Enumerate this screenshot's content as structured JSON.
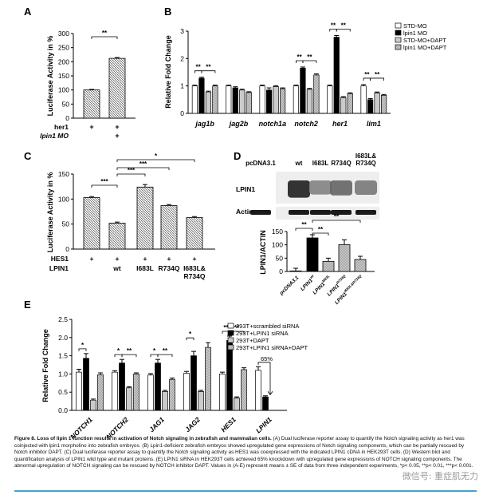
{
  "panels": {
    "A": {
      "letter": "A"
    },
    "B": {
      "letter": "B"
    },
    "C": {
      "letter": "C"
    },
    "D": {
      "letter": "D"
    },
    "E": {
      "letter": "E"
    }
  },
  "colors": {
    "black": "#000000",
    "white": "#ffffff",
    "grey": "#9a9a9a",
    "hatch": "#707070",
    "blot_dark": "#1a1a1a",
    "blot_light": "#c8c8c8",
    "caption_rule": "#3fa6c8"
  },
  "caption": {
    "title": "Figure 8. Loss of lipin 1 function results in activation of Notch signaling in zebrafish and mammalian cells.",
    "body": " (A) Dual luciferase reporter assay to quantify the Notch signaling activity as her1 was coinjected with lpin1 morpholino into zebrafish embryos. (B) Lpin1-deficient zebrafish embryos showed upregulated gene expressions of Notch signaling components, which can be partially rescued by Notch inhibitor DAPT. (C) Dual luciferase reporter assay to quantify the Notch signaling activity as HES1 was coexpressed with the indicated LPIN1 cDNA in HEK293T cells. (D) Western blot and quantification analysis of LPIN1 wild type and mutant proteins. (E) LPIN1 siRNA in HEK293T cells achieved 65% knockdown with upregulated gene expressions of NOTCH signaling components. The abnormal upregulation of NOTCH signaling can be rescued by NOTCH inhibitor DAPT. Values in (A-E) represent means ± SE of data from three independent experiments, *p< 0.05, **p< 0.01, ***p< 0.001."
  },
  "watermark": "微信号: 重症肌无力",
  "chart_data": [
    {
      "panel": "A",
      "type": "bar",
      "ylabel": "Luciferase Activity in %",
      "ylim": [
        0,
        300
      ],
      "yticks": [
        0,
        50,
        100,
        150,
        200,
        250,
        300
      ],
      "row_labels": [
        "her1",
        "lpin1 MO"
      ],
      "rows": [
        [
          "+",
          "+"
        ],
        [
          "",
          "+"
        ]
      ],
      "values": [
        100,
        212
      ],
      "errors": [
        2,
        3
      ],
      "significance": [
        {
          "from": 0,
          "to": 1,
          "label": "**"
        }
      ]
    },
    {
      "panel": "B",
      "type": "bar",
      "ylabel": "Relative Fold Change",
      "ylim": [
        0,
        3.0
      ],
      "yticks": [
        0,
        1,
        2,
        3
      ],
      "categories": [
        "jag1b",
        "jag2b",
        "notch1a",
        "notch2",
        "her1",
        "lim1"
      ],
      "series": [
        {
          "name": "STD-MO",
          "values": [
            1.0,
            1.0,
            1.0,
            1.0,
            1.0,
            1.0
          ],
          "errors": [
            0.03,
            0.03,
            0.03,
            0.03,
            0.03,
            0.05
          ]
        },
        {
          "name": "lpin1 MO",
          "values": [
            1.28,
            0.93,
            0.85,
            1.65,
            2.78,
            0.5
          ],
          "errors": [
            0.04,
            0.04,
            0.08,
            0.04,
            0.06,
            0.04
          ]
        },
        {
          "name": "STD-MO+DAPT",
          "values": [
            0.78,
            0.85,
            0.98,
            0.88,
            0.58,
            0.75
          ],
          "errors": [
            0.03,
            0.03,
            0.03,
            0.03,
            0.03,
            0.03
          ]
        },
        {
          "name": "lpin1 MO+DAPT",
          "values": [
            1.0,
            0.76,
            0.9,
            1.4,
            0.72,
            0.66
          ],
          "errors": [
            0.03,
            0.03,
            0.03,
            0.04,
            0.03,
            0.03
          ]
        }
      ],
      "significance": [
        {
          "cat": 0,
          "from": 0,
          "to": 1,
          "label": "**"
        },
        {
          "cat": 0,
          "from": 1,
          "to": 3,
          "label": "**"
        },
        {
          "cat": 3,
          "from": 0,
          "to": 1,
          "label": "**"
        },
        {
          "cat": 3,
          "from": 1,
          "to": 3,
          "label": "**"
        },
        {
          "cat": 4,
          "from": 0,
          "to": 1,
          "label": "**"
        },
        {
          "cat": 4,
          "from": 1,
          "to": 3,
          "label": "**"
        },
        {
          "cat": 5,
          "from": 0,
          "to": 1,
          "label": "**"
        },
        {
          "cat": 5,
          "from": 1,
          "to": 3,
          "label": "**"
        }
      ]
    },
    {
      "panel": "C",
      "type": "bar",
      "ylabel": "Luciferase Activity in %",
      "ylim": [
        0,
        150
      ],
      "yticks": [
        0,
        50,
        100,
        150
      ],
      "row_labels": [
        "HES1",
        "LPIN1"
      ],
      "rows": [
        [
          "+",
          "+",
          "+",
          "+",
          "+"
        ],
        [
          "",
          "wt",
          "I683L",
          "R734Q",
          "I683L&\nR734Q"
        ]
      ],
      "values": [
        103,
        52,
        124,
        87,
        63
      ],
      "errors": [
        2,
        2,
        5,
        2,
        2
      ],
      "significance": [
        {
          "from": 0,
          "to": 1,
          "label": "***"
        },
        {
          "from": 1,
          "to": 2,
          "label": "***"
        },
        {
          "from": 1,
          "to": 3,
          "label": "***"
        },
        {
          "from": 1,
          "to": 4,
          "label": "*"
        }
      ]
    },
    {
      "panel": "D",
      "type": "bar",
      "blot": {
        "lanes": [
          "pcDNA3.1",
          "wt",
          "I683L",
          "R734Q",
          "I683L&\nR734Q"
        ],
        "rows": [
          "LPIN1",
          "Actin"
        ]
      },
      "ylabel": "LPIN1/ACTIN",
      "ylim": [
        0,
        150
      ],
      "yticks": [
        0,
        50,
        100,
        150
      ],
      "categories": [
        "pcDNA3.1",
        "LPIN1wt",
        "LPIN1I683L",
        "LPIN1R734Q",
        "LPIN1I683L&R734Q"
      ],
      "category_base": [
        "pcDNA3.1",
        "LPIN1",
        "LPIN1",
        "LPIN1",
        "LPIN1"
      ],
      "category_sup": [
        "",
        "wt",
        "I683L",
        "R734Q",
        "I683L&R734Q"
      ],
      "values": [
        2,
        126,
        38,
        101,
        45
      ],
      "errors": [
        10,
        12,
        12,
        18,
        12
      ],
      "significance": [
        {
          "from": 0,
          "to": 1,
          "label": "**"
        },
        {
          "from": 1,
          "to": 2,
          "label": "**"
        },
        {
          "from": 1,
          "to": 4,
          "label": "**"
        }
      ]
    },
    {
      "panel": "E",
      "type": "bar",
      "ylabel": "Relative Fold Change",
      "ylim": [
        0,
        2.5
      ],
      "yticks": [
        0.0,
        0.5,
        1.0,
        1.5,
        2.0,
        2.5
      ],
      "categories": [
        "NOTCH1",
        "NOTCH2",
        "JAG1",
        "JAG2",
        "HES1",
        "LPIN1"
      ],
      "series": [
        {
          "name": "293T+scrambled siRNA",
          "values": [
            1.05,
            1.05,
            0.97,
            1.02,
            1.0,
            1.1
          ],
          "errors": [
            0.08,
            0.04,
            0.04,
            0.05,
            0.05,
            0.1
          ]
        },
        {
          "name": "293T+LPIN1 siRNA",
          "values": [
            1.43,
            1.3,
            1.3,
            1.5,
            1.92,
            0.37
          ],
          "errors": [
            0.13,
            0.1,
            0.1,
            0.12,
            0.12,
            0.03
          ]
        },
        {
          "name": "293T+DAPT",
          "values": [
            0.28,
            0.62,
            0.52,
            0.52,
            0.34,
            null
          ],
          "errors": [
            0.03,
            0.03,
            0.03,
            0.03,
            0.03,
            null
          ]
        },
        {
          "name": "293T+LPIN1 siRNA+DAPT",
          "values": [
            0.98,
            1.0,
            0.85,
            1.73,
            1.12,
            null
          ],
          "errors": [
            0.05,
            0.03,
            0.04,
            0.13,
            0.05,
            null
          ]
        }
      ],
      "significance": [
        {
          "cat": 0,
          "from": 0,
          "to": 1,
          "label": "*"
        },
        {
          "cat": 1,
          "from": 0,
          "to": 1,
          "label": "*"
        },
        {
          "cat": 1,
          "from": 1,
          "to": 3,
          "label": "**"
        },
        {
          "cat": 2,
          "from": 0,
          "to": 1,
          "label": "*"
        },
        {
          "cat": 2,
          "from": 1,
          "to": 3,
          "label": "**"
        },
        {
          "cat": 3,
          "from": 0,
          "to": 1,
          "label": "*"
        },
        {
          "cat": 4,
          "from": 0,
          "to": 1,
          "label": "**"
        },
        {
          "cat": 4,
          "from": 1,
          "to": 3,
          "label": "**"
        }
      ],
      "annotation": "65%"
    }
  ]
}
